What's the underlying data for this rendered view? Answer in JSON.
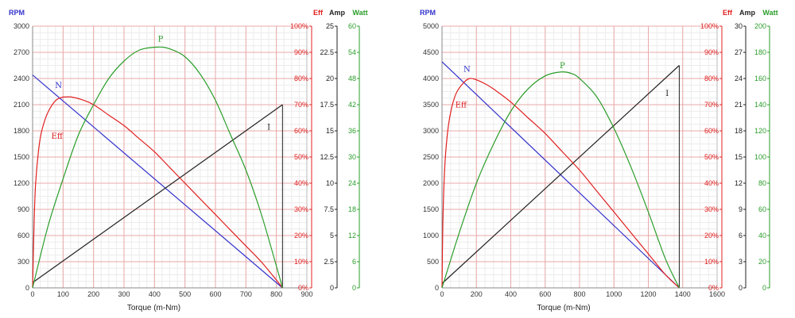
{
  "colors": {
    "rpm": "#3333cc",
    "eff": "#e02020",
    "amp": "#222222",
    "watt": "#2a9d2a",
    "grid_major": "#e9a8a8",
    "grid_minor": "#ececec"
  },
  "chart_data": [
    {
      "type": "line",
      "xlabel": "Torque (m-Nm)",
      "x_ticks": [
        "0",
        "100",
        "200",
        "300",
        "400",
        "500",
        "600",
        "700",
        "800",
        "900"
      ],
      "xlim": [
        0,
        900
      ],
      "axes": {
        "rpm": {
          "title": "RPM",
          "min": 0,
          "max": 3000,
          "ticks": [
            "0",
            "300",
            "600",
            "900",
            "1200",
            "1500",
            "1800",
            "2100",
            "2400",
            "2700",
            "3000"
          ]
        },
        "eff": {
          "title": "Eff",
          "min": 0,
          "max": 100,
          "ticks": [
            "0%",
            "10%",
            "20%",
            "30%",
            "40%",
            "50%",
            "60%",
            "70%",
            "80%",
            "90%",
            "100%"
          ]
        },
        "amp": {
          "title": "Amp",
          "min": 0,
          "max": 25,
          "ticks": [
            "0",
            "2.5",
            "5",
            "7.5",
            "10",
            "12.5",
            "15",
            "17.5",
            "20",
            "22.5",
            "25"
          ]
        },
        "watt": {
          "title": "Watt",
          "min": 0,
          "max": 60,
          "ticks": [
            "0",
            "6",
            "12",
            "18",
            "24",
            "30",
            "36",
            "42",
            "48",
            "54",
            "60"
          ]
        }
      },
      "series": [
        {
          "name": "N",
          "axis": "rpm",
          "x": [
            0,
            820
          ],
          "y": [
            2440,
            0
          ]
        },
        {
          "name": "I",
          "axis": "amp",
          "x": [
            0,
            820
          ],
          "y": [
            0.5,
            17.5
          ]
        },
        {
          "name": "Eff",
          "axis": "eff",
          "x": [
            0,
            5,
            10,
            20,
            30,
            50,
            80,
            120,
            160,
            200,
            250,
            300,
            350,
            400,
            450,
            500,
            550,
            600,
            650,
            700,
            750,
            800,
            820
          ],
          "y": [
            0,
            25,
            40,
            53,
            60,
            67,
            72,
            73,
            72,
            70,
            66,
            62,
            57,
            52,
            46,
            40,
            34,
            28,
            22,
            16,
            10,
            3,
            0
          ]
        },
        {
          "name": "P",
          "axis": "watt",
          "x": [
            0,
            50,
            100,
            150,
            200,
            250,
            300,
            350,
            410,
            450,
            500,
            550,
            600,
            650,
            700,
            750,
            800,
            820
          ],
          "y": [
            0,
            14,
            25,
            35,
            42,
            48,
            52,
            54.5,
            55.2,
            54.8,
            53,
            49,
            43,
            35,
            27,
            17,
            5,
            0
          ]
        }
      ],
      "labels": [
        {
          "text": "N",
          "x": 85,
          "axis": "rpm",
          "y": 2290
        },
        {
          "text": "Eff",
          "x": 80,
          "axis": "eff",
          "y": 57
        },
        {
          "text": "P",
          "x": 420,
          "axis": "watt",
          "y": 56.5
        },
        {
          "text": "I",
          "x": 775,
          "axis": "amp",
          "y": 15.1
        }
      ]
    },
    {
      "type": "line",
      "xlabel": "Torque (m-Nm)",
      "x_ticks": [
        "0",
        "200",
        "400",
        "600",
        "800",
        "1000",
        "1200",
        "1400",
        "1600"
      ],
      "xlim": [
        0,
        1600
      ],
      "axes": {
        "rpm": {
          "title": "RPM",
          "min": 0,
          "max": 5000,
          "ticks": [
            "0",
            "500",
            "1000",
            "1500",
            "2000",
            "2500",
            "3000",
            "3500",
            "4000",
            "4500",
            "5000"
          ]
        },
        "eff": {
          "title": "Eff",
          "min": 0,
          "max": 100,
          "ticks": [
            "0%",
            "10%",
            "20%",
            "30%",
            "40%",
            "50%",
            "60%",
            "70%",
            "80%",
            "90%",
            "100%"
          ]
        },
        "amp": {
          "title": "Amp",
          "min": 0,
          "max": 30,
          "ticks": [
            "0",
            "3",
            "6",
            "9",
            "12",
            "15",
            "18",
            "21",
            "24",
            "27",
            "30"
          ]
        },
        "watt": {
          "title": "Watt",
          "min": 0,
          "max": 200,
          "ticks": [
            "0",
            "20",
            "40",
            "60",
            "80",
            "100",
            "120",
            "140",
            "160",
            "180",
            "200"
          ]
        }
      },
      "series": [
        {
          "name": "N",
          "axis": "rpm",
          "x": [
            0,
            1380
          ],
          "y": [
            4320,
            0
          ]
        },
        {
          "name": "I",
          "axis": "amp",
          "x": [
            0,
            1380
          ],
          "y": [
            0.5,
            25.5
          ]
        },
        {
          "name": "Eff",
          "axis": "eff",
          "x": [
            0,
            5,
            15,
            30,
            50,
            80,
            120,
            160,
            200,
            250,
            300,
            400,
            500,
            600,
            700,
            800,
            900,
            1000,
            1100,
            1200,
            1300,
            1380
          ],
          "y": [
            0,
            25,
            45,
            58,
            67,
            74,
            78,
            80,
            79.5,
            78,
            76,
            71,
            65,
            59,
            52,
            45,
            37,
            29,
            21,
            13,
            5,
            0
          ]
        },
        {
          "name": "P",
          "axis": "watt",
          "x": [
            0,
            100,
            200,
            300,
            400,
            500,
            600,
            690,
            750,
            800,
            900,
            1000,
            1100,
            1200,
            1300,
            1380
          ],
          "y": [
            0,
            42,
            80,
            110,
            135,
            152,
            162,
            165,
            164,
            160,
            146,
            122,
            92,
            58,
            22,
            0
          ]
        }
      ],
      "labels": [
        {
          "text": "N",
          "x": 145,
          "axis": "rpm",
          "y": 4130
        },
        {
          "text": "Eff",
          "x": 110,
          "axis": "eff",
          "y": 69
        },
        {
          "text": "P",
          "x": 700,
          "axis": "watt",
          "y": 168
        },
        {
          "text": "I",
          "x": 1310,
          "axis": "amp",
          "y": 22
        }
      ]
    }
  ]
}
